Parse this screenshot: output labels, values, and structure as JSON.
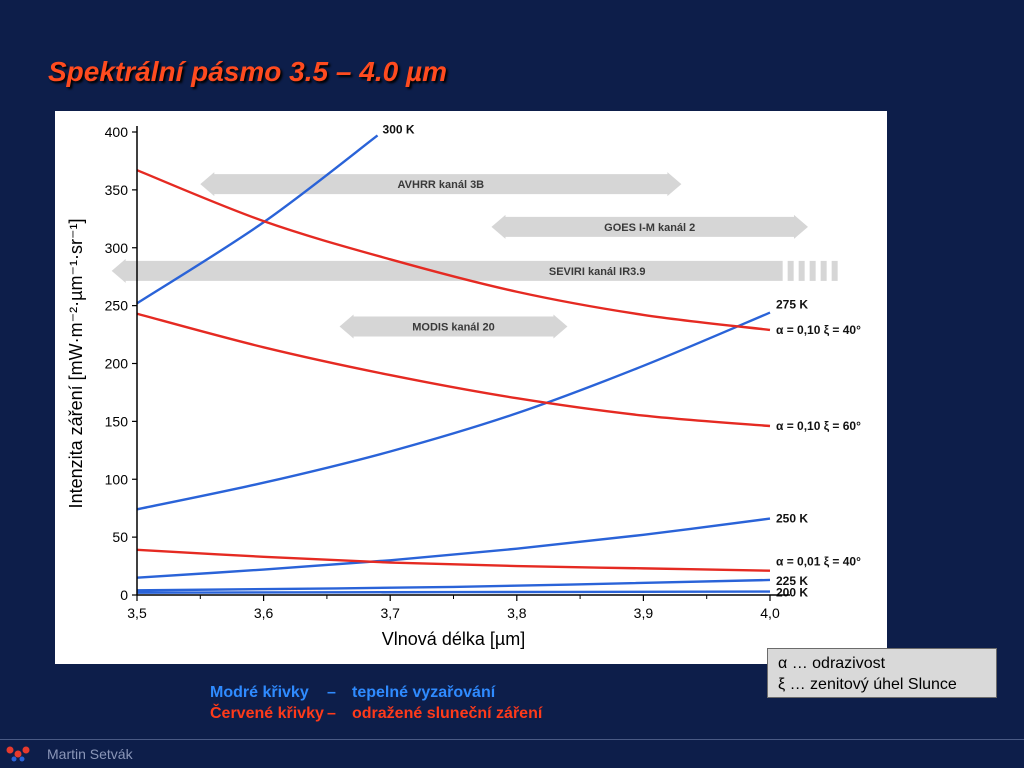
{
  "slide": {
    "title": "Spektrální pásmo  3.5 – 4.0 µm",
    "author": "Martin Setvák"
  },
  "legend": {
    "line1": "α … odrazivost",
    "line2": "ξ … zenitový úhel Slunce"
  },
  "key": {
    "blue_label": "Modré křivky",
    "blue_dash": "–",
    "blue_desc": "tepelné vyzařování",
    "red_label": "Červené křivky",
    "red_dash": "–",
    "red_desc": "odražené sluneční záření"
  },
  "colors": {
    "blue_curve": "#2a63d8",
    "red_curve": "#e52a22",
    "band_arrow": "#d6d6d6",
    "title": "#ff4b1f",
    "background": "#0d1e4a"
  },
  "chart_data": {
    "type": "line",
    "xlabel": "Vlnová délka [µm]",
    "ylabel": "Intenzita záření [mW·m⁻²·µm⁻¹·sr⁻¹]",
    "xlim": [
      3.5,
      4.0
    ],
    "ylim": [
      0,
      400
    ],
    "x_ticks": [
      "3,5",
      "3,6",
      "3,7",
      "3,8",
      "3,9",
      "4,0"
    ],
    "y_ticks": [
      "0",
      "50",
      "100",
      "150",
      "200",
      "250",
      "300",
      "350",
      "400"
    ],
    "grid": false,
    "series": [
      {
        "name": "300 K",
        "group": "thermal",
        "x": [
          3.5,
          3.6,
          3.69
        ],
        "y": [
          252,
          322,
          397
        ]
      },
      {
        "name": "275 K",
        "group": "thermal",
        "x": [
          3.5,
          3.6,
          3.7,
          3.8,
          3.9,
          4.0
        ],
        "y": [
          74,
          97,
          124,
          157,
          198,
          244
        ]
      },
      {
        "name": "250 K",
        "group": "thermal",
        "x": [
          3.5,
          3.6,
          3.7,
          3.8,
          3.9,
          4.0
        ],
        "y": [
          15,
          22,
          30,
          40,
          52,
          66
        ]
      },
      {
        "name": "225 K",
        "group": "thermal",
        "x": [
          3.5,
          3.75,
          4.0
        ],
        "y": [
          4,
          7,
          13
        ]
      },
      {
        "name": "200 K",
        "group": "thermal",
        "x": [
          3.5,
          3.75,
          4.0
        ],
        "y": [
          2,
          2.5,
          3
        ]
      },
      {
        "name": "α = 0,10  ξ = 40°",
        "group": "reflected",
        "x": [
          3.5,
          3.6,
          3.7,
          3.8,
          3.9,
          4.0
        ],
        "y": [
          367,
          323,
          290,
          262,
          242,
          229
        ]
      },
      {
        "name": "α = 0,10  ξ = 60°",
        "group": "reflected",
        "x": [
          3.5,
          3.6,
          3.7,
          3.8,
          3.9,
          4.0
        ],
        "y": [
          243,
          214,
          190,
          170,
          155,
          146
        ]
      },
      {
        "name": "α = 0,01  ξ = 40°",
        "group": "reflected",
        "x": [
          3.5,
          3.6,
          3.7,
          3.8,
          3.9,
          4.0
        ],
        "y": [
          39,
          33,
          28,
          25,
          23,
          21
        ]
      }
    ],
    "bands": [
      {
        "name": "AVHRR kanál 3B",
        "x_start": 3.55,
        "x_end": 3.93,
        "y": 355
      },
      {
        "name": "GOES I-M kanál 2",
        "x_start": 3.78,
        "x_end": 4.03,
        "y": 318
      },
      {
        "name": "SEVIRI kanál IR3.9",
        "x_start": 3.48,
        "x_end": 4.1,
        "y": 280,
        "open_end": true
      },
      {
        "name": "MODIS kanál 20",
        "x_start": 3.66,
        "x_end": 3.84,
        "y": 232
      }
    ]
  }
}
